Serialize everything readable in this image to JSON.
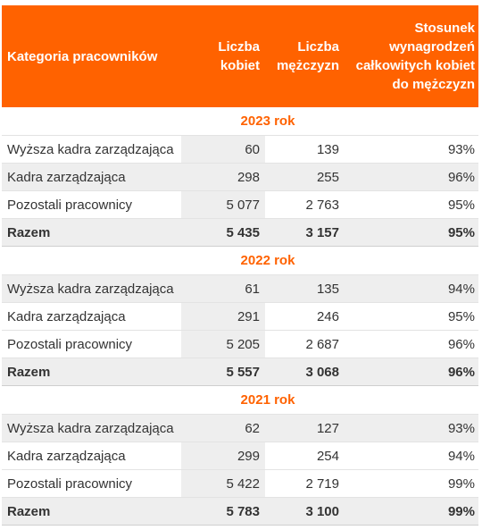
{
  "header": {
    "category": "Kategoria pracowników",
    "women": "Liczba kobiet",
    "men": "Liczba mężczyzn",
    "ratio": "Stosunek wynagrodzeń całkowitych kobiet do mężczyzn"
  },
  "sections": [
    {
      "year": "2023 rok",
      "rows": [
        {
          "label": "Wyższa kadra zarządzająca",
          "women": "60",
          "men": "139",
          "ratio": "93%"
        },
        {
          "label": "Kadra zarządzająca",
          "women": "298",
          "men": "255",
          "ratio": "96%"
        },
        {
          "label": "Pozostali pracownicy",
          "women": "5 077",
          "men": "2 763",
          "ratio": "95%"
        },
        {
          "label": "Razem",
          "women": "5 435",
          "men": "3 157",
          "ratio": "95%"
        }
      ]
    },
    {
      "year": "2022 rok",
      "rows": [
        {
          "label": "Wyższa kadra zarządzająca",
          "women": "61",
          "men": "135",
          "ratio": "94%"
        },
        {
          "label": "Kadra zarządzająca",
          "women": "291",
          "men": "246",
          "ratio": "95%"
        },
        {
          "label": "Pozostali pracownicy",
          "women": "5 205",
          "men": "2 687",
          "ratio": "96%"
        },
        {
          "label": "Razem",
          "women": "5 557",
          "men": "3 068",
          "ratio": "96%"
        }
      ]
    },
    {
      "year": "2021 rok",
      "rows": [
        {
          "label": "Wyższa kadra zarządzająca",
          "women": "62",
          "men": "127",
          "ratio": "93%"
        },
        {
          "label": "Kadra zarządzająca",
          "women": "299",
          "men": "254",
          "ratio": "94%"
        },
        {
          "label": "Pozostali pracownicy",
          "women": "5 422",
          "men": "2 719",
          "ratio": "99%"
        },
        {
          "label": "Razem",
          "women": "5 783",
          "men": "3 100",
          "ratio": "99%"
        }
      ]
    }
  ]
}
